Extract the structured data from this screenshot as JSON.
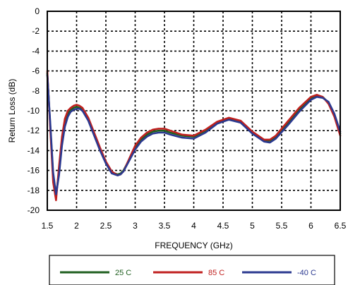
{
  "chart_data": {
    "type": "line",
    "title": "",
    "xlabel": "FREQUENCY (GHz)",
    "ylabel": "Return Loss (dB)",
    "xlim": [
      1.5,
      6.5
    ],
    "ylim": [
      -20,
      0
    ],
    "xticks": [
      1.5,
      2,
      2.5,
      3,
      3.5,
      4,
      4.5,
      5,
      5.5,
      6,
      6.5
    ],
    "yticks": [
      0,
      -2,
      -4,
      -6,
      -8,
      -10,
      -12,
      -14,
      -16,
      -18,
      -20
    ],
    "xtick_labels": [
      "1.5",
      "2",
      "2.5",
      "3",
      "3.5",
      "4",
      "4.5",
      "5",
      "5.5",
      "6",
      "6.5"
    ],
    "ytick_labels": [
      "0",
      "-2",
      "-4",
      "-6",
      "-8",
      "-10",
      "-12",
      "-14",
      "-16",
      "-18",
      "-20"
    ],
    "grid": true,
    "legend_position": "bottom",
    "series": [
      {
        "name": "25 C",
        "color": "#1f5f1f",
        "x": [
          1.5,
          1.55,
          1.6,
          1.65,
          1.7,
          1.75,
          1.8,
          1.85,
          1.9,
          1.95,
          2.0,
          2.05,
          2.1,
          2.2,
          2.3,
          2.4,
          2.5,
          2.6,
          2.7,
          2.75,
          2.8,
          2.9,
          3.0,
          3.1,
          3.2,
          3.3,
          3.4,
          3.5,
          3.6,
          3.8,
          4.0,
          4.2,
          4.4,
          4.6,
          4.8,
          5.0,
          5.2,
          5.3,
          5.4,
          5.6,
          5.8,
          6.0,
          6.1,
          6.2,
          6.3,
          6.4,
          6.5
        ],
        "y": [
          -6.2,
          -11.5,
          -16.5,
          -18.6,
          -16.0,
          -13.0,
          -11.2,
          -10.3,
          -9.9,
          -9.7,
          -9.6,
          -9.7,
          -9.9,
          -10.9,
          -12.4,
          -13.9,
          -15.2,
          -16.2,
          -16.4,
          -16.3,
          -16.0,
          -14.9,
          -13.7,
          -12.9,
          -12.4,
          -12.1,
          -12.0,
          -12.0,
          -12.2,
          -12.5,
          -12.6,
          -12.0,
          -11.2,
          -10.8,
          -11.1,
          -12.2,
          -13.0,
          -13.0,
          -12.6,
          -11.3,
          -9.9,
          -8.8,
          -8.5,
          -8.6,
          -9.2,
          -10.5,
          -12.3
        ]
      },
      {
        "name": "85 C",
        "color": "#c0201f",
        "x": [
          1.5,
          1.55,
          1.6,
          1.65,
          1.7,
          1.75,
          1.8,
          1.85,
          1.9,
          1.95,
          2.0,
          2.05,
          2.1,
          2.2,
          2.3,
          2.4,
          2.5,
          2.6,
          2.7,
          2.75,
          2.8,
          2.9,
          3.0,
          3.1,
          3.2,
          3.3,
          3.4,
          3.5,
          3.6,
          3.8,
          4.0,
          4.2,
          4.4,
          4.6,
          4.8,
          5.0,
          5.2,
          5.3,
          5.4,
          5.6,
          5.8,
          6.0,
          6.1,
          6.2,
          6.3,
          6.4,
          6.5
        ],
        "y": [
          -6.0,
          -11.8,
          -17.2,
          -19.0,
          -15.6,
          -12.6,
          -10.8,
          -10.0,
          -9.7,
          -9.5,
          -9.4,
          -9.5,
          -9.7,
          -10.7,
          -12.2,
          -13.7,
          -15.1,
          -16.1,
          -16.5,
          -16.4,
          -16.1,
          -14.8,
          -13.5,
          -12.7,
          -12.2,
          -11.9,
          -11.8,
          -11.8,
          -12.0,
          -12.4,
          -12.5,
          -11.9,
          -11.1,
          -10.7,
          -11.0,
          -12.1,
          -12.9,
          -12.9,
          -12.5,
          -11.1,
          -9.7,
          -8.6,
          -8.4,
          -8.6,
          -9.3,
          -10.6,
          -12.5
        ]
      },
      {
        "name": "-40 C",
        "color": "#2b3990",
        "x": [
          1.5,
          1.55,
          1.6,
          1.65,
          1.7,
          1.75,
          1.8,
          1.85,
          1.9,
          1.95,
          2.0,
          2.05,
          2.1,
          2.2,
          2.3,
          2.4,
          2.5,
          2.6,
          2.7,
          2.75,
          2.8,
          2.9,
          3.0,
          3.1,
          3.2,
          3.3,
          3.4,
          3.5,
          3.6,
          3.8,
          4.0,
          4.2,
          4.4,
          4.6,
          4.8,
          5.0,
          5.2,
          5.3,
          5.4,
          5.6,
          5.8,
          6.0,
          6.1,
          6.2,
          6.3,
          6.4,
          6.5
        ],
        "y": [
          -6.4,
          -11.2,
          -16.2,
          -18.4,
          -16.5,
          -13.5,
          -11.6,
          -10.6,
          -10.1,
          -9.9,
          -9.8,
          -9.8,
          -10.0,
          -11.0,
          -12.5,
          -14.0,
          -15.3,
          -16.3,
          -16.5,
          -16.4,
          -16.1,
          -15.0,
          -13.9,
          -13.1,
          -12.6,
          -12.3,
          -12.2,
          -12.2,
          -12.4,
          -12.7,
          -12.8,
          -12.2,
          -11.3,
          -10.9,
          -11.2,
          -12.3,
          -13.1,
          -13.2,
          -12.8,
          -11.5,
          -10.1,
          -8.9,
          -8.6,
          -8.7,
          -9.1,
          -10.3,
          -12.1
        ]
      }
    ]
  }
}
